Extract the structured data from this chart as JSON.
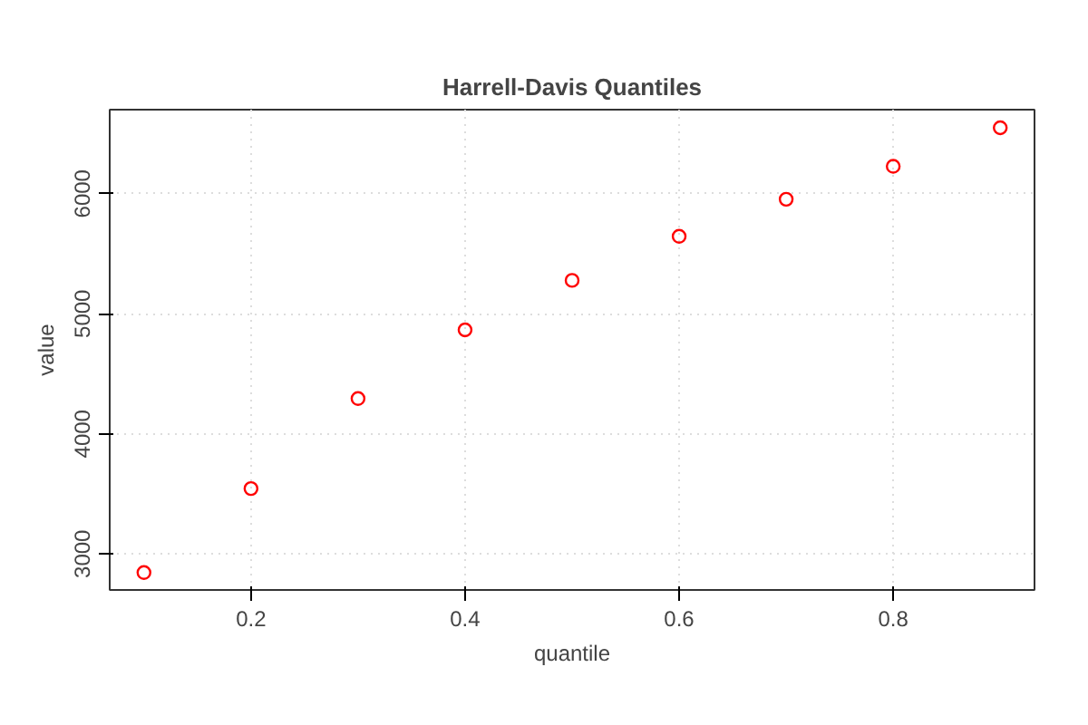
{
  "chart_data": {
    "type": "scatter",
    "title": "Harrell-Davis Quantiles",
    "xlabel": "quantile",
    "ylabel": "value",
    "x": [
      0.1,
      0.2,
      0.3,
      0.4,
      0.5,
      0.6,
      0.7,
      0.8,
      0.9
    ],
    "series": [
      {
        "color": "#ff0000",
        "values": [
          2845,
          3544,
          4294,
          4866,
          5278,
          5645,
          5954,
          6228,
          6549
        ]
      }
    ],
    "xlim": [
      0.068,
      0.932
    ],
    "ylim": [
      2700,
      6700
    ],
    "xticks": [
      0.2,
      0.4,
      0.6,
      0.8
    ],
    "yticks": [
      3000,
      4000,
      5000,
      6000
    ],
    "grid": true,
    "marker": "circle"
  }
}
